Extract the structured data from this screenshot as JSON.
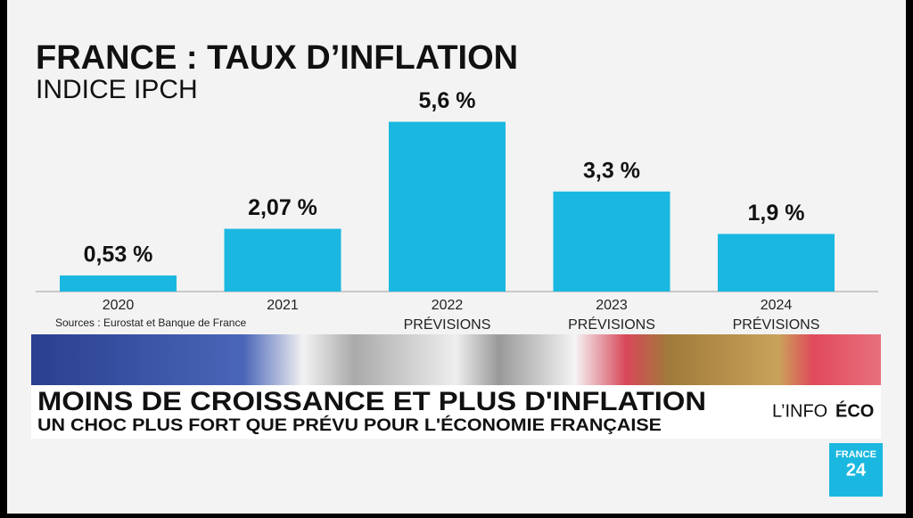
{
  "chart_data": {
    "type": "bar",
    "title": "FRANCE : TAUX D’INFLATION",
    "subtitle": "INDICE IPCH",
    "source": "Sources : Eurostat et Banque de France",
    "categories": [
      "2020",
      "2021",
      "2022",
      "2023",
      "2024"
    ],
    "category_notes": [
      null,
      null,
      "PRÉVISIONS",
      "PRÉVISIONS",
      "PRÉVISIONS"
    ],
    "values": [
      0.53,
      2.07,
      5.6,
      3.3,
      1.9
    ],
    "value_labels": [
      "0,53 %",
      "2,07 %",
      "5,6 %",
      "3,3 %",
      "1,9 %"
    ],
    "color": "#1ab8e0"
  },
  "banner": {
    "headline": "MOINS DE CROISSANCE ET PLUS D'INFLATION",
    "subheadline": "UN CHOC PLUS FORT QUE PRÉVU POUR L'ÉCONOMIE FRANÇAISE",
    "program": "L’INFO",
    "program_bold": "ÉCO"
  },
  "logo": {
    "line1": "FRANCE",
    "line2": "24"
  }
}
